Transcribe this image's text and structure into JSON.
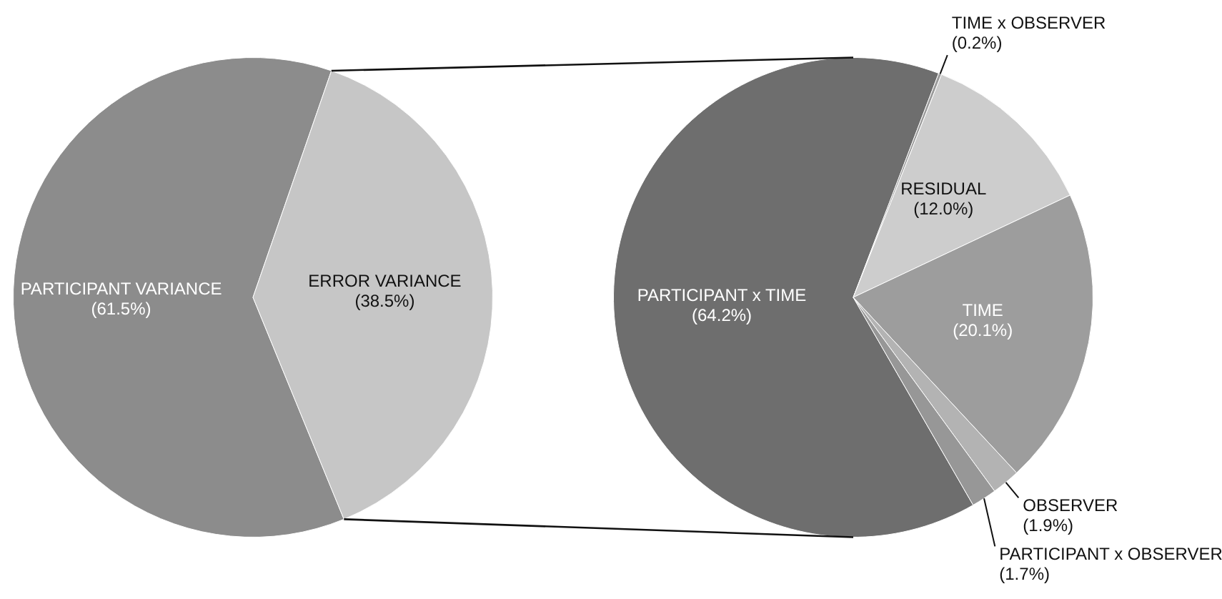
{
  "chart_data": [
    {
      "type": "pie",
      "categories": [
        "PARTICIPANT VARIANCE",
        "ERROR VARIANCE"
      ],
      "values": [
        61.5,
        38.5
      ],
      "colors": [
        "#8c8c8c",
        "#c6c6c6"
      ],
      "value_labels": [
        "(61.5%)",
        "(38.5%)"
      ]
    },
    {
      "type": "pie",
      "categories": [
        "PARTICIPANT x TIME",
        "TIME x OBSERVER",
        "RESIDUAL",
        "TIME",
        "OBSERVER",
        "PARTICIPANT x OBSERVER"
      ],
      "values": [
        64.2,
        0.2,
        12.0,
        20.1,
        1.9,
        1.7
      ],
      "colors": [
        "#6e6e6e",
        "#9a9a9a",
        "#cdcdcd",
        "#9d9d9d",
        "#b3b3b3",
        "#979797"
      ],
      "value_labels": [
        "(64.2%)",
        "(0.2%)",
        "(12.0%)",
        "(20.1%)",
        "(1.9%)",
        "(1.7%)"
      ]
    }
  ]
}
